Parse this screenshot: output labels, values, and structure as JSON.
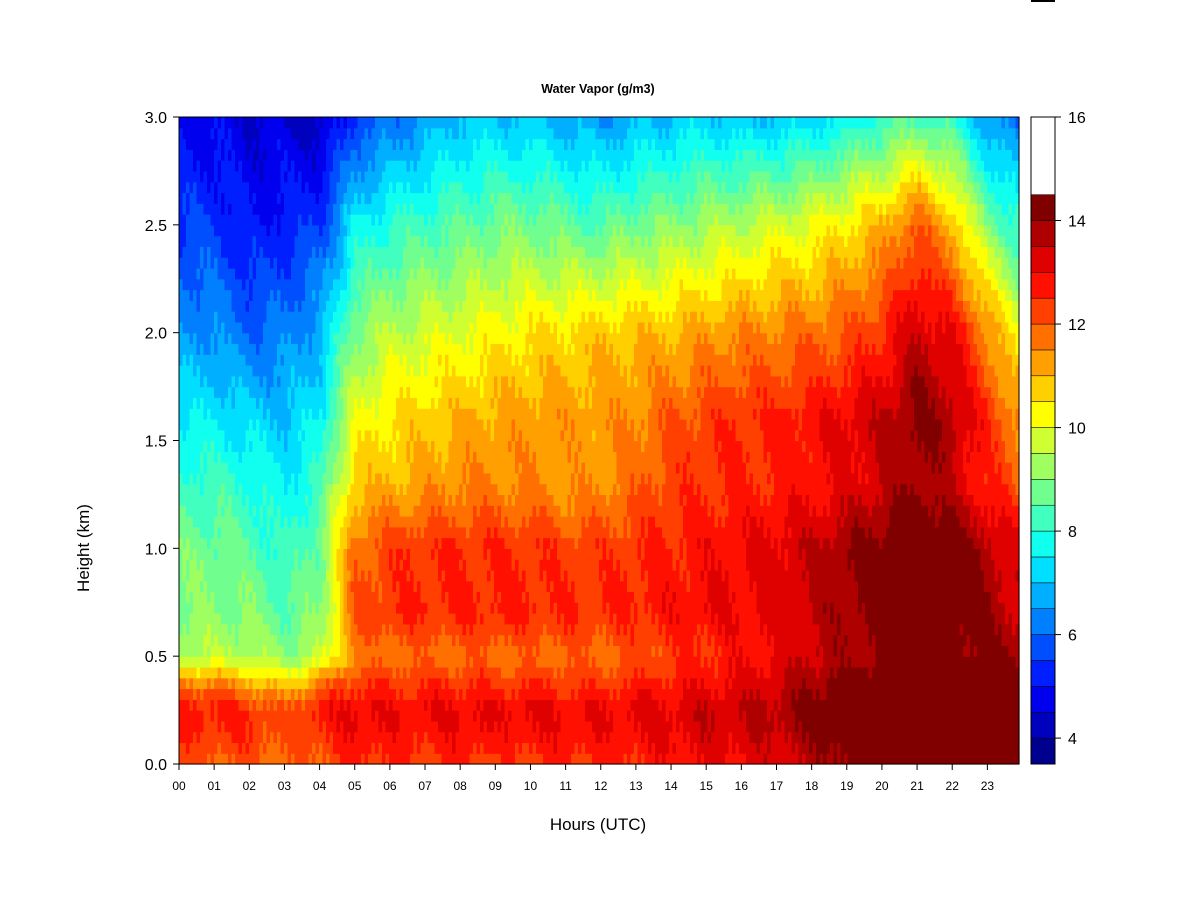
{
  "chart_data": {
    "type": "heatmap",
    "title": "Water Vapor (g/m3)",
    "xlabel": "Hours (UTC)",
    "ylabel": "Height (km)",
    "xlim": [
      0,
      23.9
    ],
    "ylim": [
      0.0,
      3.0
    ],
    "x_ticks": [
      "00",
      "01",
      "02",
      "03",
      "04",
      "05",
      "06",
      "07",
      "08",
      "09",
      "10",
      "11",
      "12",
      "13",
      "14",
      "15",
      "16",
      "17",
      "18",
      "19",
      "20",
      "21",
      "22",
      "23"
    ],
    "y_ticks": [
      "0.0",
      "0.5",
      "1.0",
      "1.5",
      "2.0",
      "2.5",
      "3.0"
    ],
    "colorbar": {
      "min": 3.5,
      "max": 16,
      "step": 0.5,
      "ticks": [
        "4",
        "6",
        "8",
        "10",
        "12",
        "14",
        "16"
      ],
      "tick_values": [
        4,
        6,
        8,
        10,
        12,
        14,
        16
      ],
      "colors": [
        "#00008f",
        "#0000bf",
        "#0000ef",
        "#001fff",
        "#004fff",
        "#007fff",
        "#00afff",
        "#00dfff",
        "#10ffef",
        "#40ffbf",
        "#70ff8f",
        "#9fff60",
        "#cfff30",
        "#ffff00",
        "#ffcf00",
        "#ff9f00",
        "#ff7000",
        "#ff4000",
        "#ff1000",
        "#df0000",
        "#af0000",
        "#800000"
      ]
    },
    "grid": false,
    "height_levels_km": [
      0.0,
      0.15,
      0.25,
      0.35,
      0.5,
      0.7,
      1.0,
      1.3,
      1.6,
      2.0,
      2.5,
      3.0
    ],
    "hours": [
      0,
      1,
      2,
      3,
      4,
      5,
      6,
      7,
      8,
      9,
      10,
      11,
      12,
      13,
      14,
      15,
      16,
      17,
      18,
      19,
      20,
      21,
      22,
      23,
      23.9
    ],
    "values_by_height": [
      [
        12.0,
        12.0,
        12.0,
        11.8,
        12.0,
        12.5,
        12.5,
        12.3,
        12.5,
        12.3,
        12.4,
        12.5,
        12.5,
        12.6,
        12.8,
        13.0,
        13.0,
        13.2,
        13.6,
        14.2,
        14.8,
        15.0,
        14.8,
        15.0,
        15.0
      ],
      [
        12.5,
        12.5,
        12.5,
        12.0,
        12.5,
        13.0,
        12.8,
        12.8,
        13.0,
        12.8,
        13.0,
        12.9,
        12.9,
        13.0,
        13.1,
        13.3,
        13.3,
        13.6,
        14.0,
        14.6,
        15.0,
        15.3,
        15.0,
        15.5,
        15.3
      ],
      [
        12.8,
        12.8,
        12.5,
        12.0,
        12.8,
        13.2,
        13.0,
        13.0,
        13.2,
        13.0,
        13.2,
        13.0,
        13.0,
        13.2,
        13.2,
        13.5,
        13.5,
        13.8,
        14.2,
        14.8,
        15.0,
        15.5,
        15.3,
        15.8,
        15.5
      ],
      [
        12.0,
        12.0,
        11.5,
        11.0,
        12.0,
        12.5,
        12.5,
        12.5,
        12.6,
        12.5,
        12.5,
        12.5,
        12.5,
        12.7,
        12.8,
        13.0,
        13.2,
        13.5,
        14.0,
        14.5,
        14.8,
        15.0,
        15.0,
        15.0,
        15.0
      ],
      [
        9.5,
        9.5,
        9.5,
        9.0,
        9.5,
        11.5,
        11.8,
        11.8,
        11.8,
        11.8,
        11.8,
        11.8,
        11.8,
        12.0,
        12.3,
        12.5,
        12.8,
        13.0,
        13.5,
        13.8,
        14.0,
        14.5,
        14.3,
        14.0,
        14.0
      ],
      [
        9.0,
        9.0,
        9.0,
        8.5,
        9.0,
        12.0,
        12.5,
        12.5,
        12.6,
        12.6,
        12.6,
        12.5,
        12.5,
        12.6,
        12.8,
        13.0,
        13.0,
        13.2,
        13.5,
        14.0,
        14.3,
        14.8,
        14.5,
        14.0,
        13.5
      ],
      [
        8.8,
        8.8,
        8.5,
        8.0,
        8.8,
        11.8,
        12.3,
        12.5,
        12.5,
        12.5,
        12.5,
        12.3,
        12.3,
        12.5,
        12.6,
        12.8,
        13.0,
        13.2,
        13.5,
        14.0,
        14.3,
        14.8,
        14.5,
        13.8,
        13.0
      ],
      [
        8.2,
        8.2,
        8.0,
        7.5,
        8.2,
        10.8,
        11.0,
        11.2,
        11.5,
        11.5,
        11.5,
        11.3,
        11.4,
        11.8,
        12.3,
        12.5,
        12.5,
        12.6,
        12.8,
        13.0,
        13.5,
        14.0,
        13.5,
        12.5,
        12.0
      ],
      [
        7.5,
        7.5,
        7.2,
        7.0,
        7.5,
        10.0,
        10.5,
        10.8,
        11.0,
        11.2,
        11.3,
        11.3,
        11.3,
        11.5,
        12.0,
        12.3,
        12.5,
        12.6,
        12.8,
        13.2,
        13.5,
        14.2,
        13.8,
        12.5,
        11.5
      ],
      [
        6.5,
        6.5,
        6.0,
        6.2,
        6.8,
        9.0,
        9.5,
        9.8,
        10.0,
        10.2,
        10.5,
        10.6,
        10.8,
        10.9,
        11.0,
        11.3,
        11.5,
        11.6,
        11.8,
        12.0,
        12.5,
        13.5,
        13.0,
        11.5,
        10.0
      ],
      [
        5.5,
        5.5,
        5.0,
        5.2,
        5.5,
        7.5,
        8.0,
        8.3,
        8.5,
        8.8,
        8.8,
        8.6,
        8.5,
        8.8,
        9.0,
        9.3,
        9.5,
        9.8,
        10.0,
        10.5,
        11.0,
        12.0,
        11.0,
        9.0,
        8.0
      ],
      [
        4.8,
        4.8,
        4.5,
        4.5,
        4.2,
        5.5,
        6.0,
        6.5,
        7.0,
        7.0,
        7.0,
        6.8,
        6.5,
        6.8,
        7.0,
        7.2,
        7.0,
        7.0,
        7.2,
        7.5,
        8.0,
        8.5,
        8.0,
        6.5,
        6.0
      ]
    ]
  }
}
